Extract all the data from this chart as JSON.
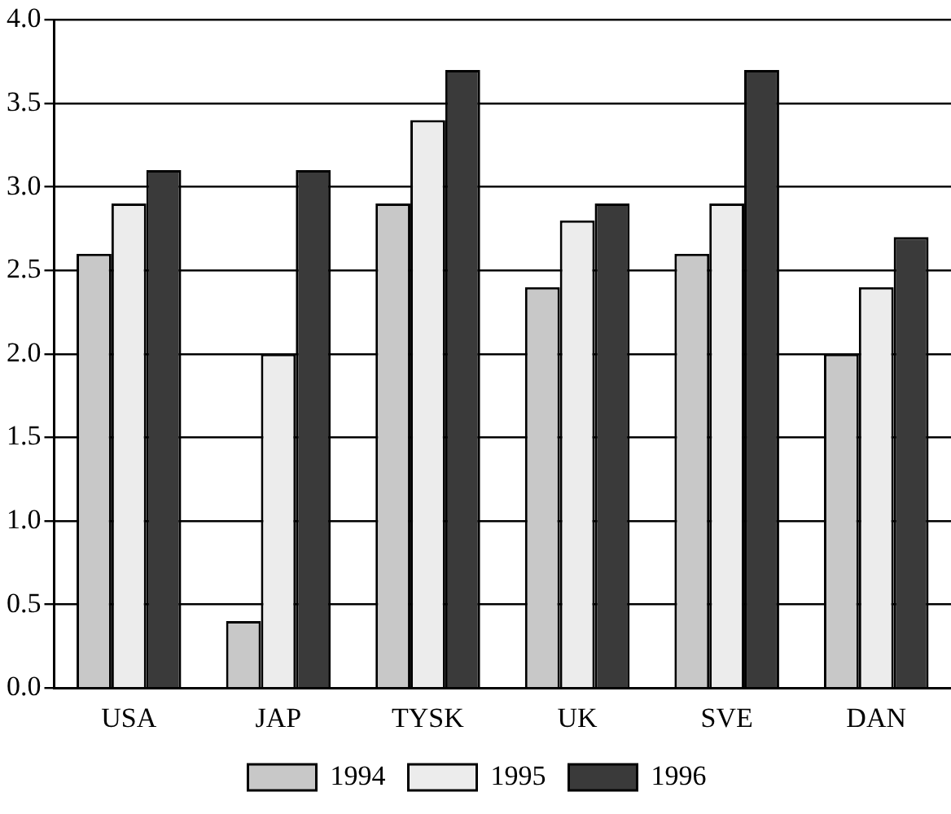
{
  "chart_data": {
    "type": "bar",
    "categories": [
      "USA",
      "JAP",
      "TYSK",
      "UK",
      "SVE",
      "DAN"
    ],
    "series": [
      {
        "name": "1994",
        "color": "#c8c8c8",
        "values": [
          2.6,
          0.4,
          2.9,
          2.4,
          2.6,
          2.0
        ]
      },
      {
        "name": "1995",
        "color": "#ececec",
        "values": [
          2.9,
          2.0,
          3.4,
          2.8,
          2.9,
          2.4
        ]
      },
      {
        "name": "1996",
        "color": "#3a3a3a",
        "values": [
          3.1,
          3.1,
          3.7,
          2.9,
          3.7,
          2.7
        ]
      }
    ],
    "ylim": [
      0,
      4
    ],
    "yticks": [
      {
        "value": 0,
        "label": "0.0"
      },
      {
        "value": 0.5,
        "label": "0.5"
      },
      {
        "value": 1,
        "label": "1.0"
      },
      {
        "value": 1.5,
        "label": "1.5"
      },
      {
        "value": 2,
        "label": "2.0"
      },
      {
        "value": 2.5,
        "label": "2.5"
      },
      {
        "value": 3,
        "label": "3.0"
      },
      {
        "value": 3.5,
        "label": "3.5"
      },
      {
        "value": 4,
        "label": "4.0"
      }
    ],
    "grid": "y",
    "legend": "bottom"
  }
}
